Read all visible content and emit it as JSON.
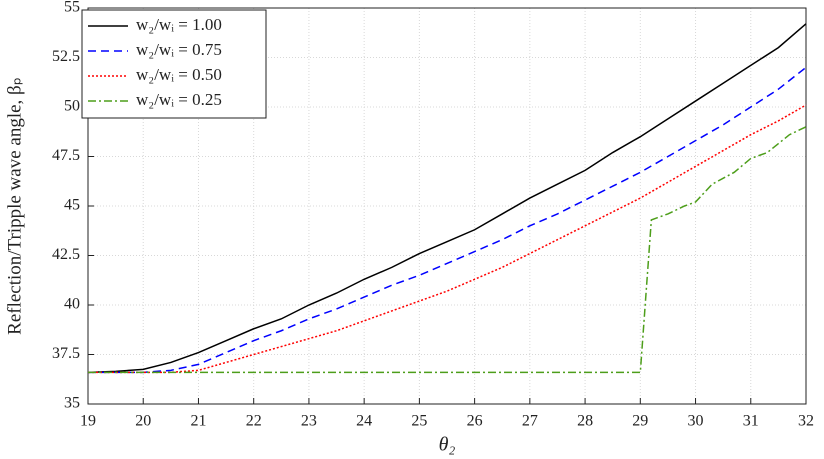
{
  "chart_data": {
    "type": "line",
    "xlabel": "θ₂",
    "ylabel": "Reflection/Tripple wave angle, βₚ",
    "x": [
      19,
      19.5,
      20,
      20.5,
      21,
      21.5,
      22,
      22.5,
      23,
      23.5,
      24,
      24.5,
      25,
      25.5,
      26,
      26.5,
      27,
      27.5,
      28,
      28.5,
      29,
      29.5,
      30,
      30.5,
      31,
      31.5,
      32
    ],
    "series": [
      {
        "name": "w₂/wᵢ = 1.00",
        "color": "#000000",
        "line_style": "solid",
        "values": [
          36.6,
          36.65,
          36.75,
          37.1,
          37.6,
          38.2,
          38.8,
          39.3,
          40.0,
          40.6,
          41.3,
          41.9,
          42.6,
          43.2,
          43.8,
          44.6,
          45.4,
          46.1,
          46.8,
          47.7,
          48.5,
          49.4,
          50.3,
          51.2,
          52.1,
          53.0,
          54.2
        ]
      },
      {
        "name": "w₂/wᵢ = 0.75",
        "color": "#0000ff",
        "line_style": "dashed",
        "values": [
          36.6,
          36.6,
          36.6,
          36.7,
          37.0,
          37.6,
          38.2,
          38.7,
          39.3,
          39.8,
          40.4,
          41.0,
          41.5,
          42.1,
          42.7,
          43.3,
          44.0,
          44.6,
          45.3,
          46.0,
          46.7,
          47.5,
          48.3,
          49.1,
          50.0,
          50.9,
          52.0
        ]
      },
      {
        "name": "w₂/wᵢ = 0.50",
        "color": "#ff0000",
        "line_style": "dotted",
        "values": [
          36.6,
          36.6,
          36.6,
          36.6,
          36.7,
          37.1,
          37.5,
          37.9,
          38.3,
          38.7,
          39.2,
          39.7,
          40.2,
          40.7,
          41.3,
          41.9,
          42.6,
          43.3,
          44.0,
          44.7,
          45.4,
          46.2,
          47.0,
          47.8,
          48.6,
          49.3,
          50.1
        ]
      },
      {
        "name": "w₂/wᵢ = 0.25",
        "color": "#4d9e1a",
        "line_style": "dashdot",
        "x": [
          19,
          29,
          29.2,
          29.5,
          29.8,
          30,
          30.3,
          30.7,
          31,
          31.3,
          31.7,
          32
        ],
        "values": [
          36.6,
          36.6,
          44.3,
          44.6,
          45.0,
          45.2,
          46.1,
          46.7,
          47.4,
          47.7,
          48.6,
          49.0
        ]
      }
    ],
    "xlim": [
      19,
      32
    ],
    "xticks": [
      19,
      20,
      21,
      22,
      23,
      24,
      25,
      26,
      27,
      28,
      29,
      30,
      31,
      32
    ],
    "ylim": [
      35,
      55
    ],
    "yticks": [
      35,
      37.5,
      40,
      42.5,
      45,
      47.5,
      50,
      52.5,
      55
    ],
    "grid": true,
    "legend": "upper left"
  }
}
